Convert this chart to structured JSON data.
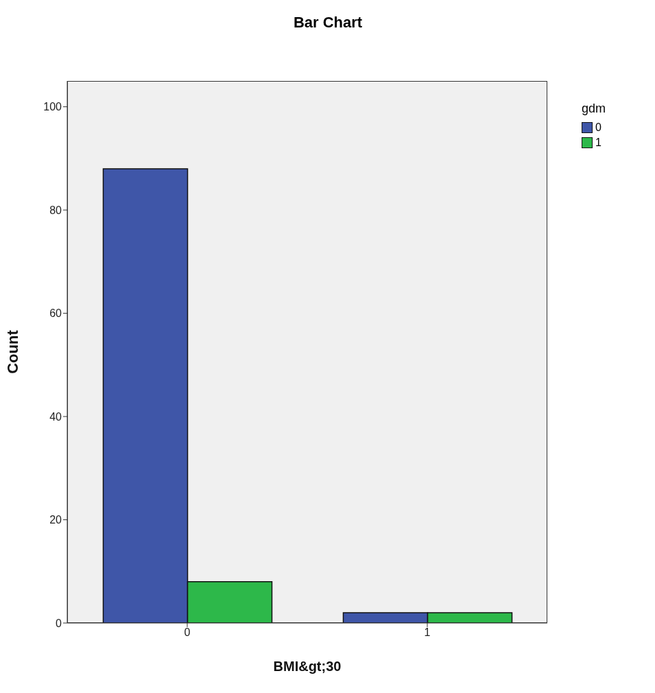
{
  "chart_data": {
    "type": "bar",
    "title": "Bar Chart",
    "xlabel": "BMI&gt;30",
    "ylabel": "Count",
    "legend_title": "gdm",
    "categories": [
      "0",
      "1"
    ],
    "series": [
      {
        "name": "0",
        "color": "#3f56a8",
        "values": [
          88,
          2
        ]
      },
      {
        "name": "1",
        "color": "#2db84a",
        "values": [
          8,
          2
        ]
      }
    ],
    "ylim": [
      0,
      105
    ],
    "yticks": [
      0,
      20,
      40,
      60,
      80,
      100
    ],
    "legend": "top right"
  }
}
